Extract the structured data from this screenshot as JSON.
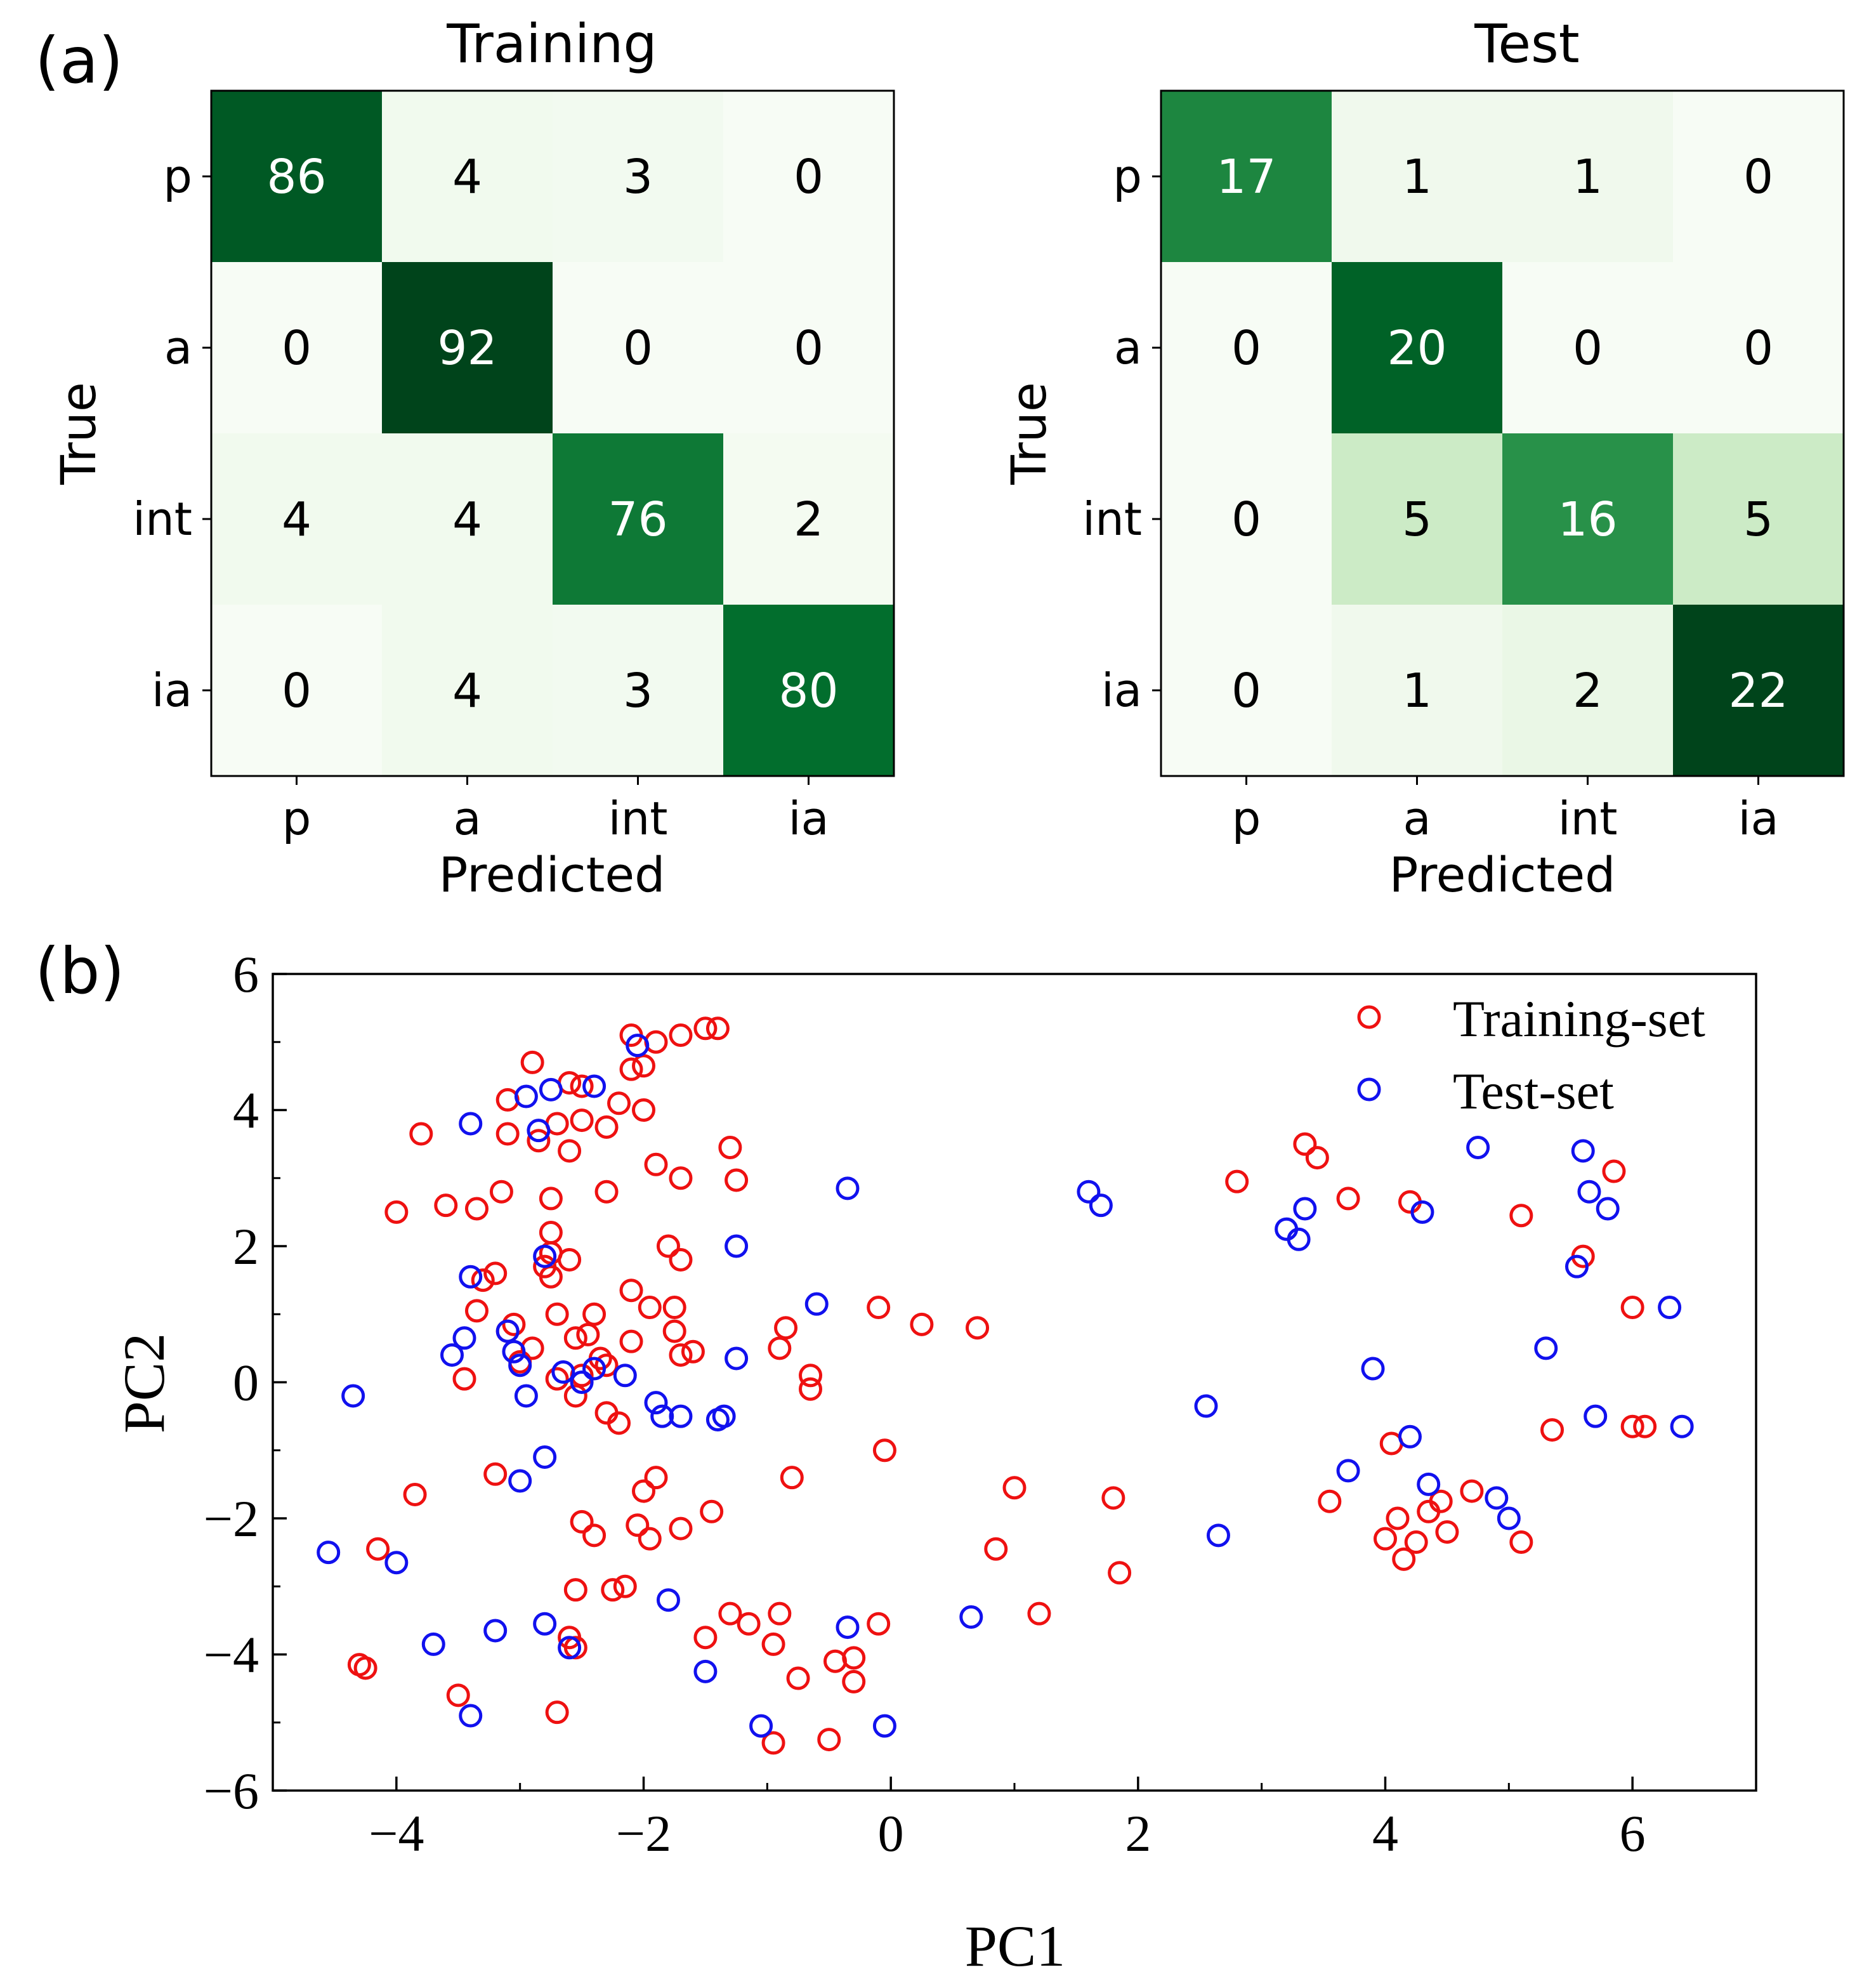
{
  "figure": {
    "panel_a_label": "(a)",
    "panel_b_label": "(b)"
  },
  "chart_data": [
    {
      "type": "heatmap",
      "title": "Training",
      "xlabel": "Predicted",
      "ylabel": "True",
      "row_labels": [
        "p",
        "a",
        "int",
        "ia"
      ],
      "col_labels": [
        "p",
        "a",
        "int",
        "ia"
      ],
      "matrix": [
        [
          86,
          4,
          3,
          0
        ],
        [
          0,
          92,
          0,
          0
        ],
        [
          4,
          4,
          76,
          2
        ],
        [
          0,
          4,
          3,
          80
        ]
      ],
      "colormap": "Greens"
    },
    {
      "type": "heatmap",
      "title": "Test",
      "xlabel": "Predicted",
      "ylabel": "True",
      "row_labels": [
        "p",
        "a",
        "int",
        "ia"
      ],
      "col_labels": [
        "p",
        "a",
        "int",
        "ia"
      ],
      "matrix": [
        [
          17,
          1,
          1,
          0
        ],
        [
          0,
          20,
          0,
          0
        ],
        [
          0,
          5,
          16,
          5
        ],
        [
          0,
          1,
          2,
          22
        ]
      ],
      "colormap": "Greens"
    },
    {
      "type": "scatter",
      "xlabel": "PC1",
      "ylabel": "PC2",
      "xlim": [
        -5,
        7
      ],
      "ylim": [
        -6,
        6
      ],
      "xticks": [
        -4,
        -2,
        0,
        2,
        4,
        6
      ],
      "yticks": [
        -6,
        -4,
        -2,
        0,
        2,
        4,
        6
      ],
      "x_tick_labels": [
        "−4",
        "−2",
        "0",
        "2",
        "4",
        "6"
      ],
      "y_tick_labels": [
        "−6",
        "−4",
        "−2",
        "0",
        "2",
        "4",
        "6"
      ],
      "legend_position": "top-right",
      "series": [
        {
          "name": "Training-set",
          "color": "#ee1111",
          "points": [
            [
              -2.9,
              4.7
            ],
            [
              -2.1,
              5.1
            ],
            [
              -1.9,
              5.0
            ],
            [
              -1.7,
              5.1
            ],
            [
              -1.5,
              5.2
            ],
            [
              -1.4,
              5.2
            ],
            [
              -2.1,
              4.6
            ],
            [
              -2.0,
              4.65
            ],
            [
              -3.1,
              4.15
            ],
            [
              -2.6,
              4.4
            ],
            [
              -2.5,
              4.35
            ],
            [
              -2.2,
              4.1
            ],
            [
              -2.0,
              4.0
            ],
            [
              -2.7,
              3.8
            ],
            [
              -2.5,
              3.85
            ],
            [
              -2.3,
              3.75
            ],
            [
              -3.1,
              3.65
            ],
            [
              -3.8,
              3.65
            ],
            [
              -2.85,
              3.55
            ],
            [
              -2.6,
              3.4
            ],
            [
              -1.3,
              3.45
            ],
            [
              -3.15,
              2.8
            ],
            [
              -2.75,
              2.7
            ],
            [
              -2.3,
              2.8
            ],
            [
              -1.9,
              3.2
            ],
            [
              -1.7,
              3.0
            ],
            [
              -1.25,
              2.97
            ],
            [
              -4.0,
              2.5
            ],
            [
              -3.6,
              2.6
            ],
            [
              -3.35,
              2.55
            ],
            [
              -2.75,
              2.2
            ],
            [
              -2.75,
              1.9
            ],
            [
              -2.6,
              1.8
            ],
            [
              -2.8,
              1.7
            ],
            [
              -1.8,
              2.0
            ],
            [
              -1.7,
              1.8
            ],
            [
              -3.3,
              1.5
            ],
            [
              -3.2,
              1.6
            ],
            [
              -2.75,
              1.55
            ],
            [
              -2.1,
              1.35
            ],
            [
              -1.95,
              1.1
            ],
            [
              -1.75,
              1.1
            ],
            [
              -3.35,
              1.05
            ],
            [
              -2.7,
              1.0
            ],
            [
              -2.4,
              1.0
            ],
            [
              -2.1,
              0.6
            ],
            [
              -3.05,
              0.85
            ],
            [
              -3.1,
              0.75
            ],
            [
              -2.55,
              0.65
            ],
            [
              -2.45,
              0.7
            ],
            [
              -1.75,
              0.75
            ],
            [
              -1.7,
              0.4
            ],
            [
              -1.6,
              0.45
            ],
            [
              -2.9,
              0.5
            ],
            [
              -2.35,
              0.35
            ],
            [
              -2.3,
              0.25
            ],
            [
              -3.0,
              0.3
            ],
            [
              -2.5,
              0.1
            ],
            [
              -2.7,
              0.05
            ],
            [
              -3.45,
              0.05
            ],
            [
              -2.3,
              -0.45
            ],
            [
              -2.2,
              -0.6
            ],
            [
              -2.55,
              -0.2
            ],
            [
              -0.85,
              0.8
            ],
            [
              -0.9,
              0.5
            ],
            [
              -0.65,
              0.1
            ],
            [
              -0.65,
              -0.1
            ],
            [
              -0.1,
              1.1
            ],
            [
              0.25,
              0.85
            ],
            [
              0.7,
              0.8
            ],
            [
              -0.05,
              -1.0
            ],
            [
              -0.8,
              -1.4
            ],
            [
              -1.9,
              -1.4
            ],
            [
              -2.0,
              -1.6
            ],
            [
              -3.2,
              -1.35
            ],
            [
              -3.85,
              -1.65
            ],
            [
              -4.15,
              -2.45
            ],
            [
              -2.5,
              -2.05
            ],
            [
              -2.4,
              -2.25
            ],
            [
              -2.05,
              -2.1
            ],
            [
              -1.95,
              -2.3
            ],
            [
              -1.7,
              -2.15
            ],
            [
              -1.45,
              -1.9
            ],
            [
              -2.55,
              -3.05
            ],
            [
              -2.25,
              -3.05
            ],
            [
              -2.15,
              -3.0
            ],
            [
              -1.3,
              -3.4
            ],
            [
              -1.15,
              -3.55
            ],
            [
              -0.9,
              -3.4
            ],
            [
              -0.95,
              -3.85
            ],
            [
              -1.5,
              -3.75
            ],
            [
              -2.6,
              -3.75
            ],
            [
              -2.55,
              -3.9
            ],
            [
              -4.3,
              -4.15
            ],
            [
              -4.25,
              -4.2
            ],
            [
              -3.5,
              -4.6
            ],
            [
              -2.7,
              -4.85
            ],
            [
              -0.75,
              -4.35
            ],
            [
              -0.45,
              -4.1
            ],
            [
              -0.3,
              -4.05
            ],
            [
              -0.3,
              -4.4
            ],
            [
              -0.1,
              -3.55
            ],
            [
              -0.95,
              -5.3
            ],
            [
              -0.5,
              -5.25
            ],
            [
              0.85,
              -2.45
            ],
            [
              1.0,
              -1.55
            ],
            [
              1.2,
              -3.4
            ],
            [
              1.8,
              -1.7
            ],
            [
              1.85,
              -2.8
            ],
            [
              2.8,
              2.95
            ],
            [
              3.35,
              3.5
            ],
            [
              3.45,
              3.3
            ],
            [
              3.7,
              2.7
            ],
            [
              4.2,
              2.65
            ],
            [
              5.1,
              2.45
            ],
            [
              5.6,
              1.85
            ],
            [
              5.85,
              3.1
            ],
            [
              6.0,
              1.1
            ],
            [
              6.0,
              -0.65
            ],
            [
              6.1,
              -0.65
            ],
            [
              5.35,
              -0.7
            ],
            [
              4.05,
              -0.9
            ],
            [
              3.55,
              -1.75
            ],
            [
              4.0,
              -2.3
            ],
            [
              4.1,
              -2.0
            ],
            [
              4.15,
              -2.6
            ],
            [
              4.25,
              -2.35
            ],
            [
              4.35,
              -1.9
            ],
            [
              4.45,
              -1.75
            ],
            [
              4.5,
              -2.2
            ],
            [
              4.7,
              -1.6
            ],
            [
              5.1,
              -2.35
            ]
          ]
        },
        {
          "name": "Test-set",
          "color": "#1111ee",
          "points": [
            [
              -2.05,
              4.95
            ],
            [
              -2.4,
              4.35
            ],
            [
              -2.75,
              4.3
            ],
            [
              -2.95,
              4.2
            ],
            [
              -3.4,
              3.8
            ],
            [
              -2.85,
              3.7
            ],
            [
              -0.35,
              2.85
            ],
            [
              -1.25,
              2.0
            ],
            [
              -2.8,
              1.85
            ],
            [
              -3.4,
              1.55
            ],
            [
              -0.6,
              1.15
            ],
            [
              -3.1,
              0.75
            ],
            [
              -3.45,
              0.65
            ],
            [
              -3.55,
              0.4
            ],
            [
              -3.05,
              0.45
            ],
            [
              -3.0,
              0.25
            ],
            [
              -2.65,
              0.15
            ],
            [
              -2.4,
              0.2
            ],
            [
              -2.15,
              0.1
            ],
            [
              -1.25,
              0.35
            ],
            [
              -2.95,
              -0.2
            ],
            [
              -2.5,
              0.0
            ],
            [
              -1.9,
              -0.3
            ],
            [
              -1.85,
              -0.5
            ],
            [
              -1.7,
              -0.5
            ],
            [
              -1.4,
              -0.55
            ],
            [
              -1.35,
              -0.5
            ],
            [
              -4.35,
              -0.2
            ],
            [
              -2.8,
              -1.1
            ],
            [
              -3.0,
              -1.45
            ],
            [
              -4.55,
              -2.5
            ],
            [
              -4.0,
              -2.65
            ],
            [
              -3.7,
              -3.85
            ],
            [
              -3.2,
              -3.65
            ],
            [
              -2.8,
              -3.55
            ],
            [
              -2.6,
              -3.9
            ],
            [
              -1.8,
              -3.2
            ],
            [
              -1.5,
              -4.25
            ],
            [
              -0.35,
              -3.6
            ],
            [
              -3.4,
              -4.9
            ],
            [
              -1.05,
              -5.05
            ],
            [
              -0.05,
              -5.05
            ],
            [
              0.65,
              -3.45
            ],
            [
              1.6,
              2.8
            ],
            [
              1.7,
              2.6
            ],
            [
              2.55,
              -0.35
            ],
            [
              2.65,
              -2.25
            ],
            [
              3.2,
              2.25
            ],
            [
              3.3,
              2.1
            ],
            [
              3.35,
              2.55
            ],
            [
              3.9,
              0.2
            ],
            [
              3.7,
              -1.3
            ],
            [
              4.3,
              2.5
            ],
            [
              4.2,
              -0.8
            ],
            [
              4.35,
              -1.5
            ],
            [
              4.75,
              3.45
            ],
            [
              4.9,
              -1.7
            ],
            [
              5.0,
              -2.0
            ],
            [
              5.3,
              0.5
            ],
            [
              5.55,
              1.7
            ],
            [
              5.6,
              3.4
            ],
            [
              5.65,
              2.8
            ],
            [
              5.8,
              2.55
            ],
            [
              5.7,
              -0.5
            ],
            [
              6.3,
              1.1
            ],
            [
              6.4,
              -0.65
            ]
          ]
        }
      ]
    }
  ]
}
